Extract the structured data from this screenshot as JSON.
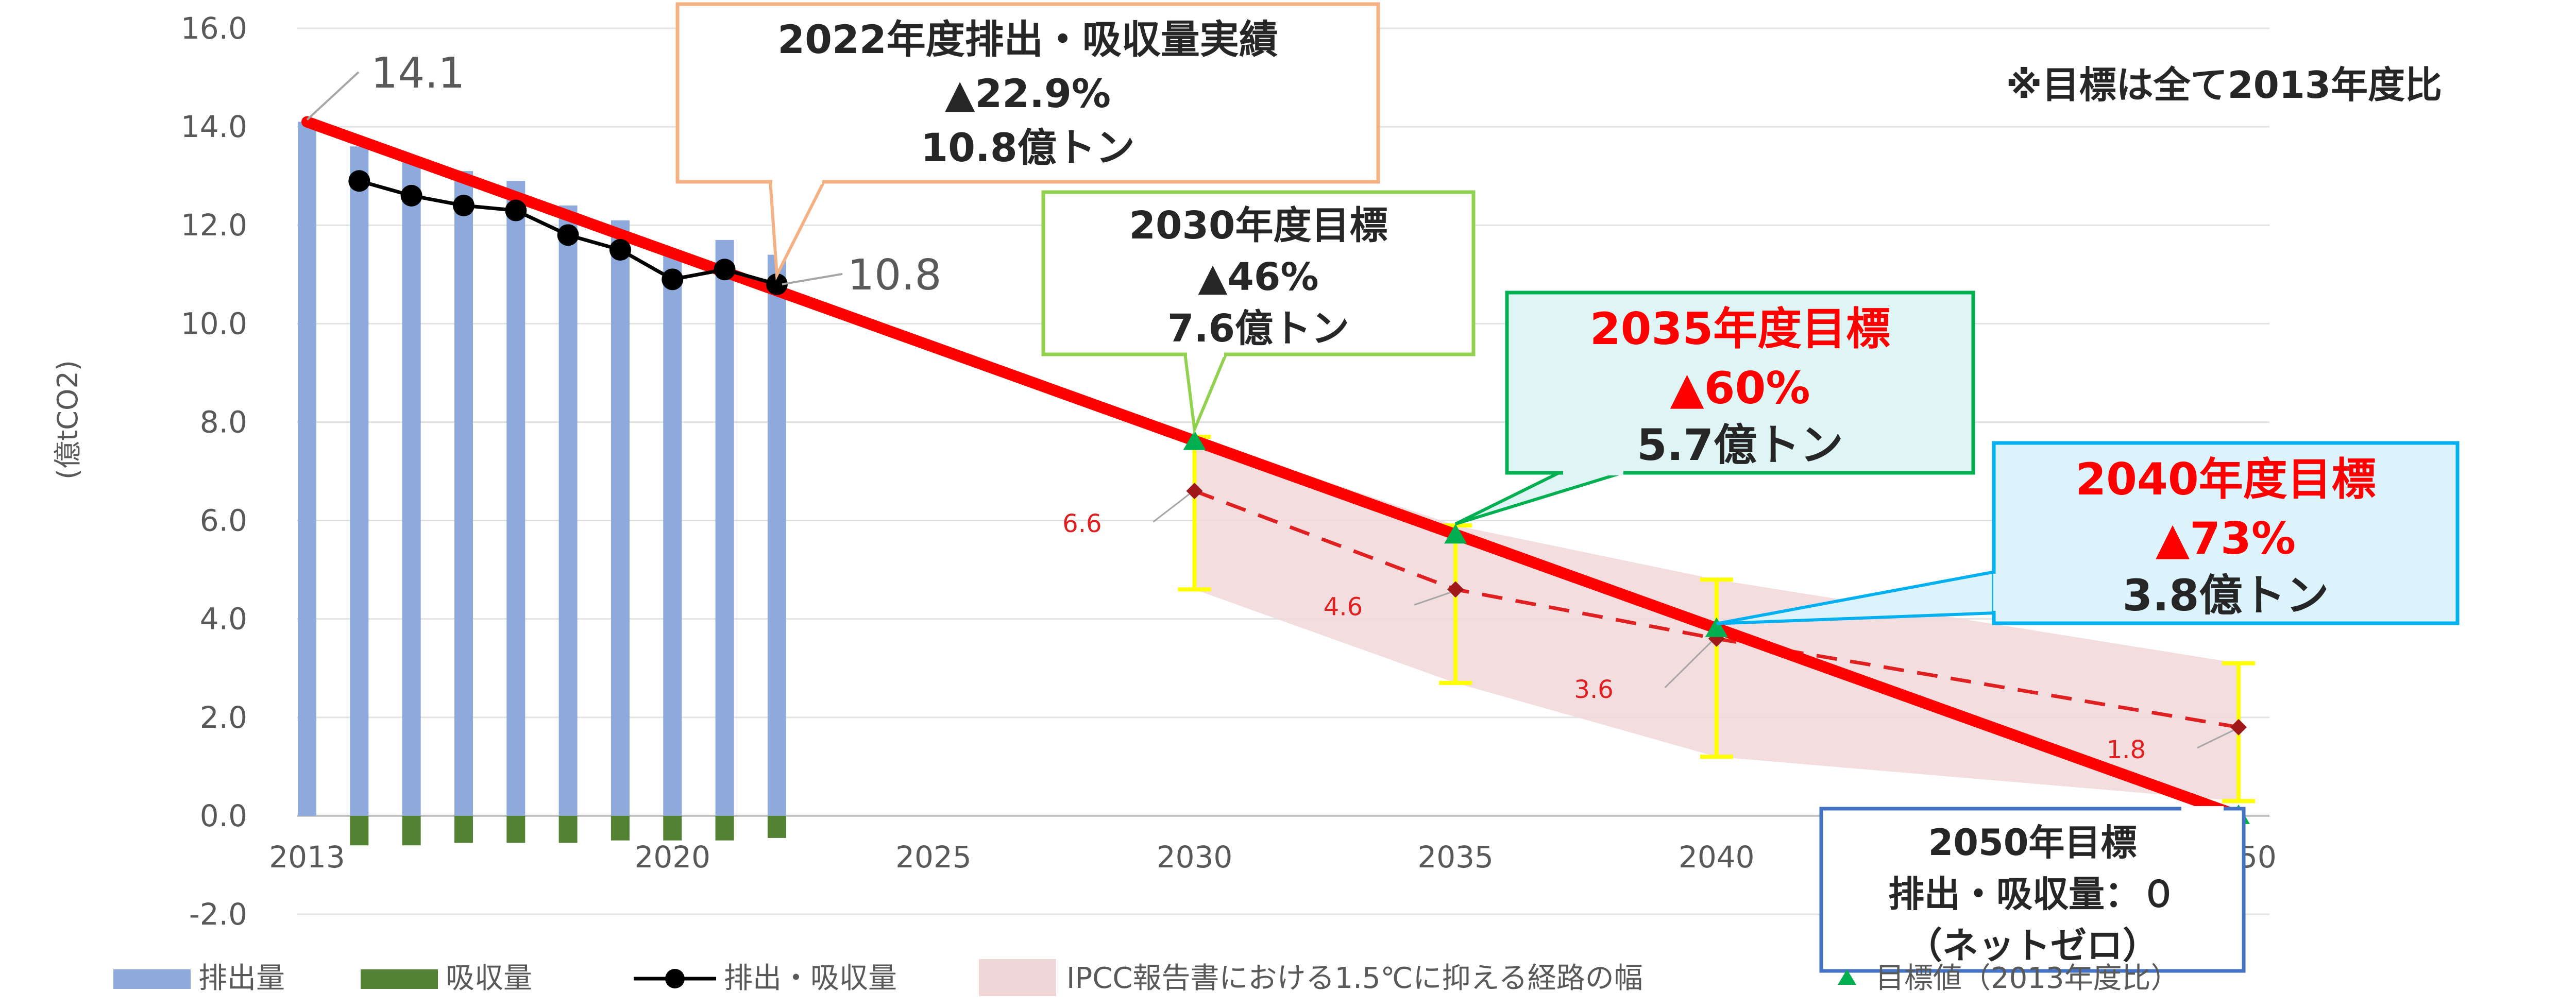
{
  "chart_data": {
    "type": "bar",
    "ylabel": "(億tCO2)",
    "ylim": [
      -2.0,
      16.0
    ],
    "yticks": [
      "16.0",
      "14.0",
      "12.0",
      "10.0",
      "8.0",
      "6.0",
      "4.0",
      "2.0",
      "0.0",
      "-2.0"
    ],
    "xticks": [
      "2013",
      "2020",
      "2025",
      "2030",
      "2035",
      "2040",
      "2050"
    ],
    "note": "※目標は全て2013年度比",
    "series": [
      {
        "name": "排出量",
        "type": "bar",
        "x": [
          2013,
          2014,
          2015,
          2016,
          2017,
          2018,
          2019,
          2020,
          2021,
          2022
        ],
        "values": [
          14.1,
          13.6,
          13.3,
          13.1,
          12.9,
          12.4,
          12.1,
          11.5,
          11.7,
          11.4
        ]
      },
      {
        "name": "吸収量",
        "type": "bar",
        "x": [
          2014,
          2015,
          2016,
          2017,
          2018,
          2019,
          2020,
          2021,
          2022
        ],
        "values": [
          -0.6,
          -0.6,
          -0.55,
          -0.55,
          -0.55,
          -0.5,
          -0.5,
          -0.5,
          -0.45
        ]
      },
      {
        "name": "排出・吸収量",
        "type": "line",
        "x": [
          2014,
          2015,
          2016,
          2017,
          2018,
          2019,
          2020,
          2021,
          2022
        ],
        "values": [
          12.9,
          12.6,
          12.4,
          12.3,
          11.8,
          11.5,
          10.9,
          11.1,
          10.8
        ]
      },
      {
        "name": "target_path",
        "type": "line",
        "x": [
          2013,
          2050
        ],
        "values": [
          14.1,
          0.0
        ]
      },
      {
        "name": "IPCC報告書における1.5℃に抑える経路の幅",
        "type": "area",
        "x": [
          2030,
          2035,
          2040,
          2050
        ],
        "median": [
          6.6,
          4.6,
          3.6,
          1.8
        ],
        "low": [
          4.6,
          2.7,
          1.2,
          0.3
        ],
        "high": [
          7.7,
          5.9,
          4.8,
          3.1
        ]
      },
      {
        "name": "目標値（2013年度比）",
        "type": "scatter",
        "x": [
          2030,
          2035,
          2040,
          2050
        ],
        "values": [
          7.6,
          5.7,
          3.8,
          0.0
        ]
      }
    ],
    "annotations": {
      "start_value": "14.1",
      "actual_value": "10.8",
      "ipcc_values": [
        "6.6",
        "4.6",
        "3.6",
        "1.8"
      ],
      "box2022": [
        "2022年度排出・吸収量実績",
        "▲22.9%",
        "10.8億トン"
      ],
      "box2030": [
        "2030年度目標",
        "▲46%",
        "7.6億トン"
      ],
      "box2035": [
        "2035年度目標",
        "▲60%",
        "5.7億トン"
      ],
      "box2040": [
        "2040年度目標",
        "▲73%",
        "3.8億トン"
      ],
      "box2050": [
        "2050年目標",
        "排出・吸収量：０",
        "（ネットゼロ）"
      ]
    },
    "legend": {
      "position": "bottom",
      "items": [
        "排出量",
        "吸収量",
        "排出・吸収量",
        "IPCC報告書における1.5℃に抑える経路の幅",
        "目標値（2013年度比）"
      ]
    },
    "colors": {
      "emission_bar": "#8ea9db",
      "absorption_bar": "#548235",
      "net_line": "#000000",
      "target_line": "#ff0000",
      "ipcc_band": "#f2d7d9",
      "ipcc_line": "#e02020",
      "error_bar": "#ffff00",
      "target_marker": "#00b050",
      "box_2022_border": "#f4b183",
      "box_2030_border": "#92d050",
      "box_2035_border": "#00b050",
      "box_2035_fill": "#dff5f5",
      "box_2040_border": "#00b0f0",
      "box_2040_fill": "#dcf3fb",
      "box_2050_border": "#4472c4",
      "highlight_text": "#ff0000"
    }
  }
}
